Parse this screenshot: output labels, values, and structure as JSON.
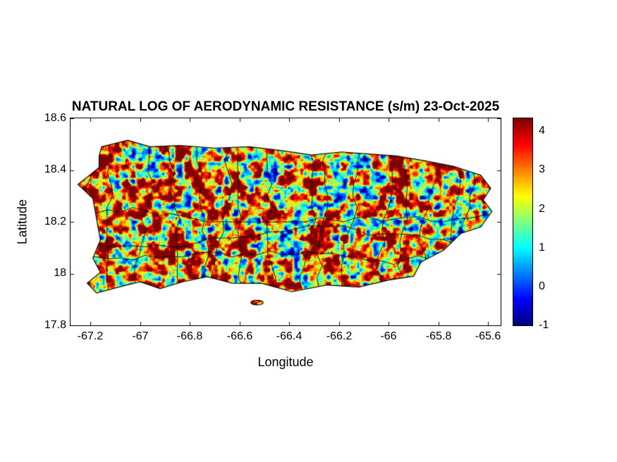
{
  "figure": {
    "title": "NATURAL LOG OF AERODYNAMIC RESISTANCE (s/m) 23-Oct-2025",
    "background": "#ffffff"
  },
  "axes": {
    "xlabel": "Longitude",
    "ylabel": "Latitude",
    "xticks": [
      "-67.2",
      "-67",
      "-66.8",
      "-66.6",
      "-66.4",
      "-66.2",
      "-66",
      "-65.8",
      "-65.6"
    ],
    "yticks": [
      "18.6",
      "18.4",
      "18.2",
      "18",
      "17.8"
    ]
  },
  "colorbar": {
    "ticks": [
      "4",
      "3",
      "2",
      "1",
      "0",
      "-1"
    ]
  },
  "chart_data": {
    "type": "heatmap",
    "title": "NATURAL LOG OF AERODYNAMIC RESISTANCE (s/m) 23-Oct-2025",
    "xlabel": "Longitude",
    "ylabel": "Latitude",
    "region": "Puerto Rico with municipal boundary lines overlaid",
    "xlim": [
      -67.28,
      -65.55
    ],
    "ylim": [
      17.8,
      18.6
    ],
    "xtick_values": [
      -67.2,
      -67,
      -66.8,
      -66.6,
      -66.4,
      -66.2,
      -66,
      -65.8,
      -65.6
    ],
    "ytick_values": [
      18.6,
      18.4,
      18.2,
      18,
      17.8
    ],
    "clim": [
      -1,
      4.33
    ],
    "colorbar_tick_values": [
      4,
      3,
      2,
      1,
      0,
      -1
    ],
    "colormap": "jet",
    "colormap_stops": [
      {
        "t": 0.0,
        "color": "#000080"
      },
      {
        "t": 0.125,
        "color": "#0000ff"
      },
      {
        "t": 0.375,
        "color": "#00ffff"
      },
      {
        "t": 0.625,
        "color": "#ffff00"
      },
      {
        "t": 0.875,
        "color": "#ff0000"
      },
      {
        "t": 1.0,
        "color": "#800000"
      }
    ],
    "values_summary": {
      "dominant": "ln(ra) between 3 and 4.3 (orange to dark red) over most of the island",
      "patches": "ln(ra) between 1 and 2 (cyan to green) scattered patches, mainly coastal plains and valleys",
      "sparse_low": "ln(ra) between -1 and 0 (dark blue specks) in a few small spots",
      "grid": "dense raster (~1 km pixels), speckled texture",
      "boundaries": "thin black municipality boundary lines dividing the island into many small districts"
    },
    "outline": [
      [
        -67.155,
        18.49
      ],
      [
        -67.05,
        18.515
      ],
      [
        -66.96,
        18.49
      ],
      [
        -66.84,
        18.495
      ],
      [
        -66.7,
        18.485
      ],
      [
        -66.56,
        18.49
      ],
      [
        -66.43,
        18.475
      ],
      [
        -66.31,
        18.458
      ],
      [
        -66.19,
        18.47
      ],
      [
        -66.08,
        18.462
      ],
      [
        -65.97,
        18.455
      ],
      [
        -65.85,
        18.435
      ],
      [
        -65.74,
        18.415
      ],
      [
        -65.63,
        18.38
      ],
      [
        -65.59,
        18.33
      ],
      [
        -65.62,
        18.285
      ],
      [
        -65.585,
        18.24
      ],
      [
        -65.63,
        18.18
      ],
      [
        -65.71,
        18.155
      ],
      [
        -65.78,
        18.09
      ],
      [
        -65.87,
        18.045
      ],
      [
        -65.9,
        17.99
      ],
      [
        -66.0,
        17.975
      ],
      [
        -66.12,
        17.948
      ],
      [
        -66.25,
        17.956
      ],
      [
        -66.39,
        17.93
      ],
      [
        -66.51,
        17.962
      ],
      [
        -66.63,
        17.963
      ],
      [
        -66.73,
        17.988
      ],
      [
        -66.83,
        17.968
      ],
      [
        -66.92,
        17.942
      ],
      [
        -67.0,
        17.968
      ],
      [
        -67.07,
        17.952
      ],
      [
        -67.175,
        17.925
      ],
      [
        -67.213,
        17.963
      ],
      [
        -67.16,
        18.005
      ],
      [
        -67.19,
        18.06
      ],
      [
        -67.16,
        18.13
      ],
      [
        -67.175,
        18.21
      ],
      [
        -67.19,
        18.29
      ],
      [
        -67.25,
        18.345
      ],
      [
        -67.21,
        18.375
      ],
      [
        -67.165,
        18.41
      ],
      [
        -67.165,
        18.455
      ]
    ],
    "islet": {
      "center": [
        -66.53,
        17.888
      ],
      "rx": 0.025,
      "ry": 0.009
    }
  }
}
